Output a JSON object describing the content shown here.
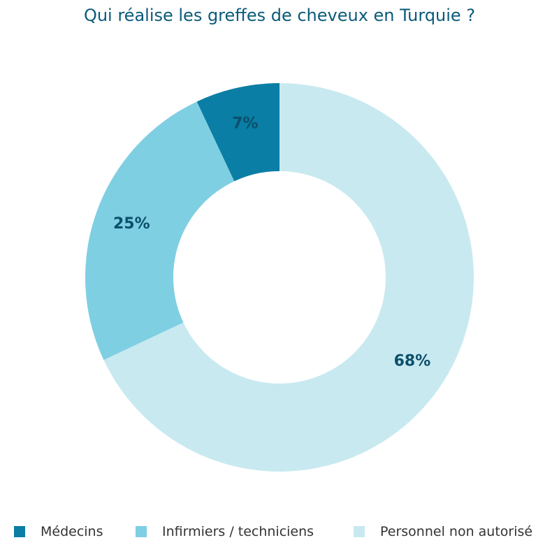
{
  "chart_data": {
    "type": "pie",
    "title": "Qui réalise les greffes de cheveux en Turquie ?",
    "donut": true,
    "legend_position": "bottom",
    "categories": [
      "Médecins",
      "Infirmiers / techniciens",
      "Personnel non autorisé"
    ],
    "values": [
      7,
      25,
      68
    ],
    "data_labels": [
      "7%",
      "25%",
      "68%"
    ],
    "colors": [
      "#0a7ea4",
      "#7fcfe3",
      "#c8e9f0"
    ]
  }
}
